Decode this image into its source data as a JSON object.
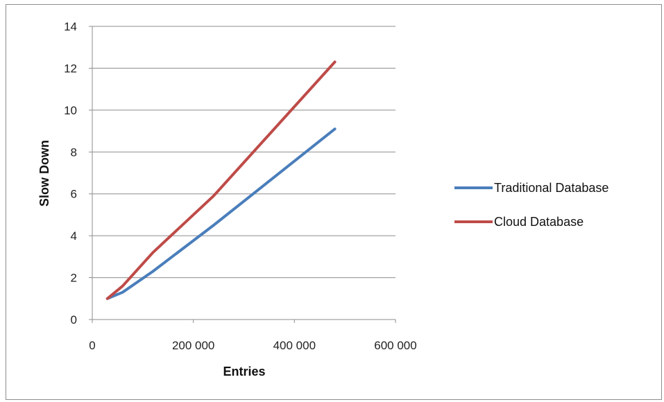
{
  "chart_data": {
    "type": "line",
    "xlabel": "Entries",
    "ylabel": "Slow Down",
    "xlim": [
      0,
      600000
    ],
    "ylim": [
      0,
      14
    ],
    "x_ticks": [
      0,
      200000,
      400000,
      600000
    ],
    "x_tick_labels": [
      "0",
      "200 000",
      "400 000",
      "600 000"
    ],
    "y_ticks": [
      0,
      2,
      4,
      6,
      8,
      10,
      12,
      14
    ],
    "y_tick_labels": [
      "0",
      "2",
      "4",
      "6",
      "8",
      "10",
      "12",
      "14"
    ],
    "grid": "horizontal",
    "legend_position": "right",
    "series": [
      {
        "name": "Traditional Database",
        "color": "#4a7ebb",
        "x": [
          30000,
          60000,
          120000,
          240000,
          480000
        ],
        "y": [
          1.0,
          1.3,
          2.3,
          4.5,
          9.1
        ]
      },
      {
        "name": "Cloud Database",
        "color": "#be4b48",
        "x": [
          30000,
          60000,
          120000,
          240000,
          480000
        ],
        "y": [
          1.0,
          1.6,
          3.2,
          5.9,
          12.3
        ]
      }
    ]
  }
}
